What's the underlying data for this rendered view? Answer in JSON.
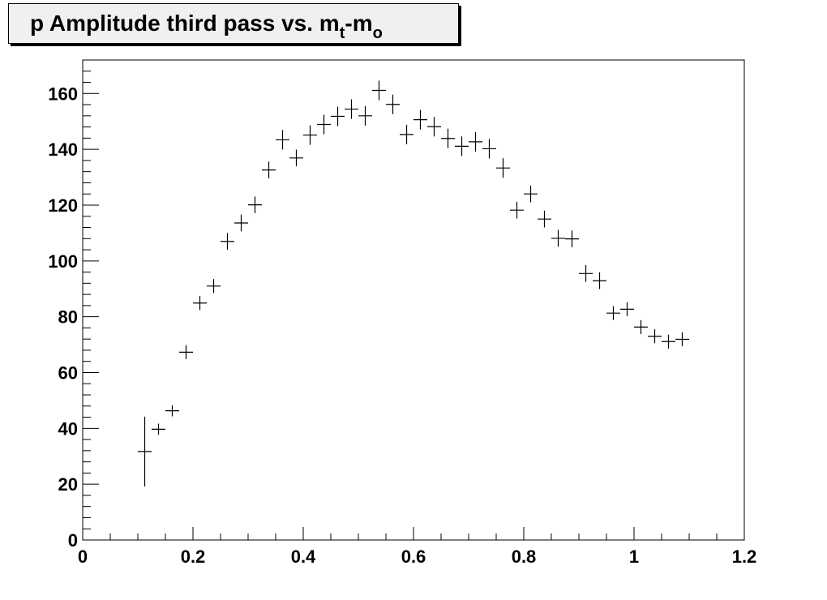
{
  "chart_data": {
    "type": "scatter",
    "title": {
      "main": "p Amplitude third pass vs. m",
      "sub_t": "t",
      "dash": "-m",
      "sub_o": "o"
    },
    "xlabel": "",
    "ylabel": "",
    "xlim": [
      0,
      1.2
    ],
    "ylim": [
      0,
      172
    ],
    "x_ticks": [
      "0",
      "0.2",
      "0.4",
      "0.6",
      "0.8",
      "1",
      "1.2"
    ],
    "y_ticks": [
      "0",
      "20",
      "40",
      "60",
      "80",
      "100",
      "120",
      "140",
      "160"
    ],
    "grid": false,
    "x_bin_halfwidth": 0.0125,
    "points": [
      {
        "x": 0.1125,
        "y": 31.7,
        "err": 12.5
      },
      {
        "x": 0.1375,
        "y": 39.7,
        "err": 2
      },
      {
        "x": 0.1625,
        "y": 46.3,
        "err": 2
      },
      {
        "x": 0.1875,
        "y": 67.3,
        "err": 2.5
      },
      {
        "x": 0.2125,
        "y": 84.9,
        "err": 2.5
      },
      {
        "x": 0.2375,
        "y": 91.0,
        "err": 2.5
      },
      {
        "x": 0.2625,
        "y": 107.0,
        "err": 3
      },
      {
        "x": 0.2875,
        "y": 113.6,
        "err": 3
      },
      {
        "x": 0.3125,
        "y": 120.1,
        "err": 3
      },
      {
        "x": 0.3375,
        "y": 132.6,
        "err": 3
      },
      {
        "x": 0.3625,
        "y": 143.4,
        "err": 3.5
      },
      {
        "x": 0.3875,
        "y": 136.9,
        "err": 3
      },
      {
        "x": 0.4125,
        "y": 145.1,
        "err": 3.5
      },
      {
        "x": 0.4375,
        "y": 148.9,
        "err": 3.5
      },
      {
        "x": 0.4625,
        "y": 151.8,
        "err": 3.5
      },
      {
        "x": 0.4875,
        "y": 154.4,
        "err": 3.5
      },
      {
        "x": 0.5125,
        "y": 152.0,
        "err": 3.5
      },
      {
        "x": 0.5375,
        "y": 161.1,
        "err": 3.5
      },
      {
        "x": 0.5625,
        "y": 156.1,
        "err": 3.5
      },
      {
        "x": 0.5875,
        "y": 145.3,
        "err": 3.5
      },
      {
        "x": 0.6125,
        "y": 150.6,
        "err": 3.5
      },
      {
        "x": 0.6375,
        "y": 148.1,
        "err": 3.5
      },
      {
        "x": 0.6625,
        "y": 143.9,
        "err": 3.5
      },
      {
        "x": 0.6875,
        "y": 141.1,
        "err": 3.5
      },
      {
        "x": 0.7125,
        "y": 142.7,
        "err": 3.5
      },
      {
        "x": 0.7375,
        "y": 140.2,
        "err": 3.5
      },
      {
        "x": 0.7625,
        "y": 133.3,
        "err": 3.5
      },
      {
        "x": 0.7875,
        "y": 118.2,
        "err": 3
      },
      {
        "x": 0.8125,
        "y": 124.0,
        "err": 3
      },
      {
        "x": 0.8375,
        "y": 115.0,
        "err": 3
      },
      {
        "x": 0.8625,
        "y": 108.1,
        "err": 3
      },
      {
        "x": 0.8875,
        "y": 107.9,
        "err": 3
      },
      {
        "x": 0.9125,
        "y": 95.5,
        "err": 3
      },
      {
        "x": 0.9375,
        "y": 92.9,
        "err": 3
      },
      {
        "x": 0.9625,
        "y": 81.3,
        "err": 2.5
      },
      {
        "x": 0.9875,
        "y": 82.7,
        "err": 2.5
      },
      {
        "x": 1.0125,
        "y": 76.3,
        "err": 2.5
      },
      {
        "x": 1.0375,
        "y": 73.0,
        "err": 2.5
      },
      {
        "x": 1.0625,
        "y": 71.1,
        "err": 2.5
      },
      {
        "x": 1.0875,
        "y": 71.9,
        "err": 2.5
      }
    ]
  }
}
